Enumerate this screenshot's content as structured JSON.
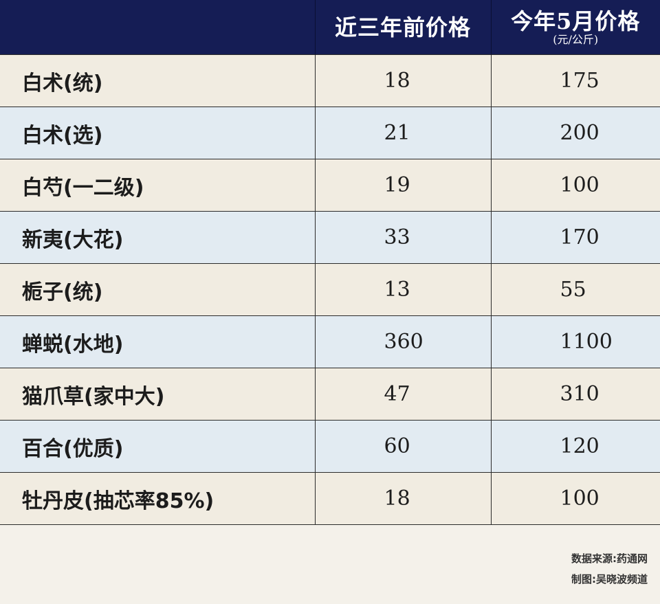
{
  "table": {
    "headers": {
      "item": "",
      "old_price": "近三年前价格",
      "new_price": "今年5月价格",
      "new_price_unit": "(元/公斤)"
    },
    "rows": [
      {
        "name": "白术(统)",
        "old": "18",
        "new": "175"
      },
      {
        "name": "白术(选)",
        "old": "21",
        "new": "200"
      },
      {
        "name": "白芍(一二级)",
        "old": "19",
        "new": "100"
      },
      {
        "name": "新夷(大花)",
        "old": "33",
        "new": "170"
      },
      {
        "name": "栀子(统)",
        "old": "13",
        "new": "55"
      },
      {
        "name": "蝉蜕(水地)",
        "old": "360",
        "new": "1100"
      },
      {
        "name": "猫爪草(家中大)",
        "old": "47",
        "new": "310"
      },
      {
        "name": "百合(优质)",
        "old": "60",
        "new": "120"
      },
      {
        "name": "牡丹皮(抽芯率85%)",
        "old": "18",
        "new": "100"
      }
    ]
  },
  "footer": {
    "source": "数据来源:药通网",
    "credit": "制图:吴晓波频道"
  },
  "colors": {
    "header_bg": "#151d55",
    "row_odd_bg": "#f1ece1",
    "row_even_bg": "#e2ebf2",
    "page_bg": "#f4f1ea"
  }
}
